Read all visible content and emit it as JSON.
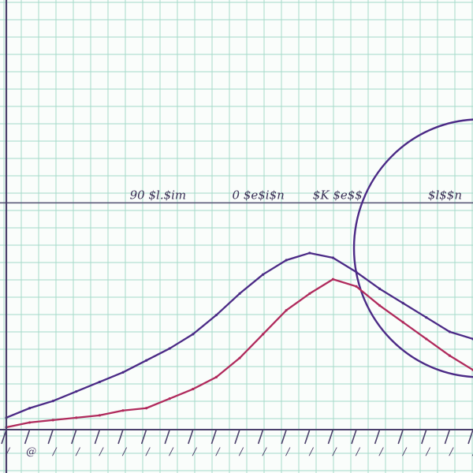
{
  "colors": {
    "background": "#fafdfb",
    "grid": "#a8dccc",
    "axis": "#4a3f6b",
    "series_1": "#4b2a86",
    "series_2": "#b02a5c",
    "circle": "#4b2a86",
    "mid_line": "#5a5a7a"
  },
  "chart_data": {
    "type": "line",
    "title": "",
    "xlabel": "",
    "ylabel": "",
    "grid": true,
    "legend": "none",
    "xlim": [
      0,
      20
    ],
    "ylim": [
      0,
      18
    ],
    "mid_line_y": 9.5,
    "mid_labels": [
      "90 $l.$im",
      "0 $e$i$n",
      "$K $e$$",
      "$l$$n"
    ],
    "mid_label_x": [
      6.5,
      10.8,
      14.2,
      18.8
    ],
    "x": [
      0,
      1,
      2,
      3,
      4,
      5,
      6,
      7,
      8,
      9,
      10,
      11,
      12,
      13,
      14,
      15,
      16,
      17,
      18,
      19,
      20
    ],
    "x_tick_labels": [
      "/",
      "@",
      "/",
      "/",
      "/",
      "/",
      "/",
      "/",
      "/",
      "/",
      "/",
      "/",
      "/",
      "/",
      "/",
      "/",
      "/",
      "/",
      "/",
      "/",
      "/"
    ],
    "series": [
      {
        "values": [
          0.5,
          0.9,
          1.2,
          1.6,
          2.0,
          2.4,
          2.9,
          3.4,
          4.0,
          4.8,
          5.7,
          6.5,
          7.1,
          7.4,
          7.2,
          6.6,
          5.9,
          5.3,
          4.7,
          4.1,
          3.8
        ]
      },
      {
        "values": [
          0.1,
          0.3,
          0.4,
          0.5,
          0.6,
          0.8,
          0.9,
          1.3,
          1.7,
          2.2,
          3.0,
          4.0,
          5.0,
          5.7,
          6.3,
          6.0,
          5.2,
          4.5,
          3.8,
          3.1,
          2.5
        ]
      }
    ],
    "circle": {
      "cx": 20.3,
      "cy": 7.6,
      "r": 5.4
    }
  }
}
